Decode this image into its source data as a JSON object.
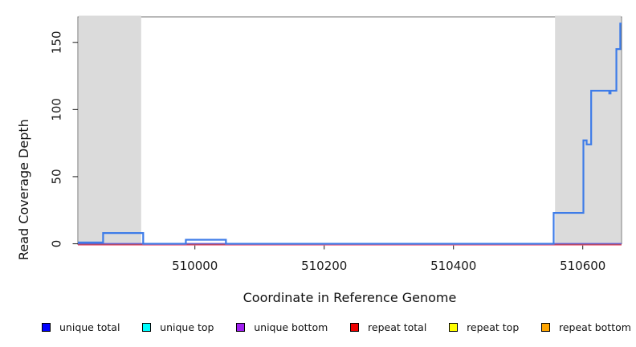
{
  "chart_data": {
    "type": "line",
    "subtype": "step-coverage",
    "title": "",
    "xlabel": "Coordinate in Reference Genome",
    "ylabel": "Read Coverage Depth",
    "xlim": [
      509819,
      510660
    ],
    "ylim": [
      0,
      169
    ],
    "x_ticks": [
      510000,
      510200,
      510400,
      510600
    ],
    "y_ticks": [
      0,
      50,
      100,
      150
    ],
    "grid": false,
    "legend_position": "bottom",
    "shaded_regions": [
      {
        "x0": 509819,
        "x1": 509918,
        "color": "#dbdbdb"
      },
      {
        "x0": 510556,
        "x1": 510660,
        "color": "#dbdbdb"
      }
    ],
    "series": [
      {
        "name": "unique total",
        "type": "step",
        "color": "#3e7ce8",
        "steps": [
          [
            509819,
            1
          ],
          [
            509858,
            8
          ],
          [
            509920,
            0
          ],
          [
            509986,
            3
          ],
          [
            510048,
            0
          ],
          [
            510555,
            23
          ],
          [
            510601,
            77
          ],
          [
            510606,
            74
          ],
          [
            510613,
            114
          ],
          [
            510641,
            112
          ],
          [
            510643,
            114
          ],
          [
            510652,
            145
          ],
          [
            510658,
            164
          ]
        ],
        "end_x": 510660
      },
      {
        "name": "unique bottom baseline",
        "type": "hline",
        "color": "#7766da",
        "value": 0,
        "nudge": -0.3
      },
      {
        "name": "repeat total baseline",
        "type": "hline",
        "color": "#ee5b7a",
        "value": 0,
        "nudge": 1.4
      }
    ],
    "legend": [
      {
        "label": "unique total",
        "color": "#0000ff"
      },
      {
        "label": "unique top",
        "color": "#00ffff"
      },
      {
        "label": "unique bottom",
        "color": "#a020f0"
      },
      {
        "label": "repeat total",
        "color": "#ee0000"
      },
      {
        "label": "repeat top",
        "color": "#ffff00"
      },
      {
        "label": "repeat bottom",
        "color": "#ffa500"
      }
    ],
    "axis_color": "#1a1a1a",
    "box_color": "#707070"
  }
}
